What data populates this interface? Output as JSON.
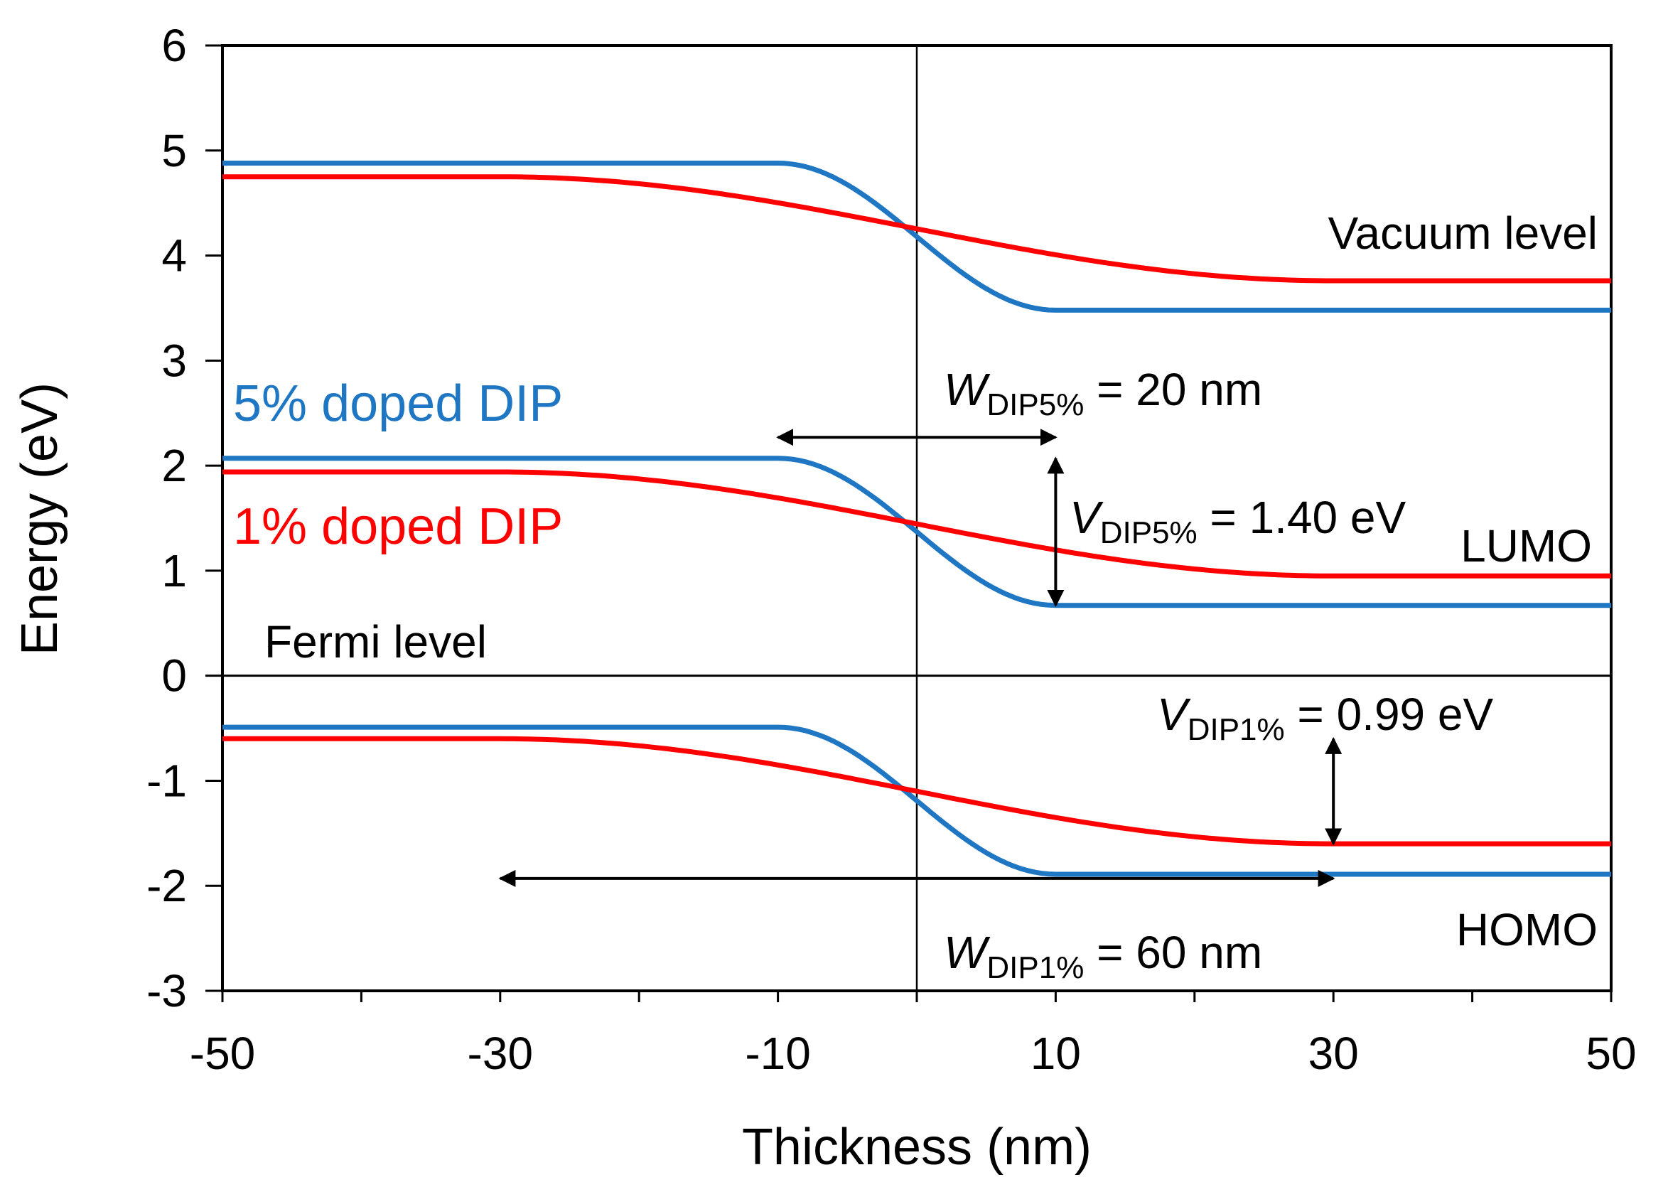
{
  "chart_data": {
    "type": "line",
    "title": "",
    "xlabel": "Thickness (nm)",
    "ylabel": "Energy (eV)",
    "xlim": [
      -50,
      50
    ],
    "ylim": [
      -3,
      6
    ],
    "x_ticks": [
      "-50",
      "-30",
      "-10",
      "10",
      "30",
      "50"
    ],
    "y_ticks": [
      "-3",
      "-2",
      "-1",
      "0",
      "1",
      "2",
      "3",
      "4",
      "5",
      "6"
    ],
    "grid": false,
    "legend": [
      {
        "name": "5% doped DIP",
        "color": "#1f77c4"
      },
      {
        "name": "1% doped DIP",
        "color": "#ff0000"
      }
    ],
    "series": [
      {
        "name": "5% doped DIP",
        "level": "Vacuum level",
        "color": "#1f77c4",
        "x_start": -50,
        "x_bend_start": -10,
        "x_bend_end": 10,
        "x_end": 50,
        "y_left": 4.88,
        "y_right": 3.48
      },
      {
        "name": "1% doped DIP",
        "level": "Vacuum level",
        "color": "#ff0000",
        "x_start": -50,
        "x_bend_start": -30,
        "x_bend_end": 30,
        "x_end": 50,
        "y_left": 4.75,
        "y_right": 3.76
      },
      {
        "name": "5% doped DIP",
        "level": "LUMO",
        "color": "#1f77c4",
        "x_start": -50,
        "x_bend_start": -10,
        "x_bend_end": 10,
        "x_end": 50,
        "y_left": 2.07,
        "y_right": 0.67
      },
      {
        "name": "1% doped DIP",
        "level": "LUMO",
        "color": "#ff0000",
        "x_start": -50,
        "x_bend_start": -30,
        "x_bend_end": 30,
        "x_end": 50,
        "y_left": 1.94,
        "y_right": 0.95
      },
      {
        "name": "5% doped DIP",
        "level": "HOMO",
        "color": "#1f77c4",
        "x_start": -50,
        "x_bend_start": -10,
        "x_bend_end": 10,
        "x_end": 50,
        "y_left": -0.49,
        "y_right": -1.89
      },
      {
        "name": "1% doped DIP",
        "level": "HOMO",
        "color": "#ff0000",
        "x_start": -50,
        "x_bend_start": -30,
        "x_bend_end": 30,
        "x_end": 50,
        "y_left": -0.6,
        "y_right": -1.6
      }
    ],
    "reference_lines": {
      "fermi_level_y": 0,
      "interface_x": 0
    },
    "annotations": {
      "vacuum_level": "Vacuum level",
      "lumo": "LUMO",
      "homo": "HOMO",
      "fermi_level": "Fermi level",
      "w5": {
        "var": "W",
        "sub": "DIP5%",
        "rest": " = 20 nm",
        "arrow": {
          "x1": -10,
          "x2": 10,
          "y": 2.27
        }
      },
      "v5": {
        "var": "V",
        "sub": "DIP5%",
        "rest": " = 1.40 eV",
        "arrow": {
          "x": 10,
          "y1": 2.07,
          "y2": 0.67
        }
      },
      "v1": {
        "var": "V",
        "sub": "DIP1%",
        "rest": " = 0.99 eV",
        "arrow": {
          "x": 30,
          "y1": -0.6,
          "y2": -1.6
        }
      },
      "w1": {
        "var": "W",
        "sub": "DIP1%",
        "rest": " = 60 nm",
        "arrow": {
          "x1": -30,
          "x2": 30,
          "y": -1.93
        }
      }
    }
  }
}
